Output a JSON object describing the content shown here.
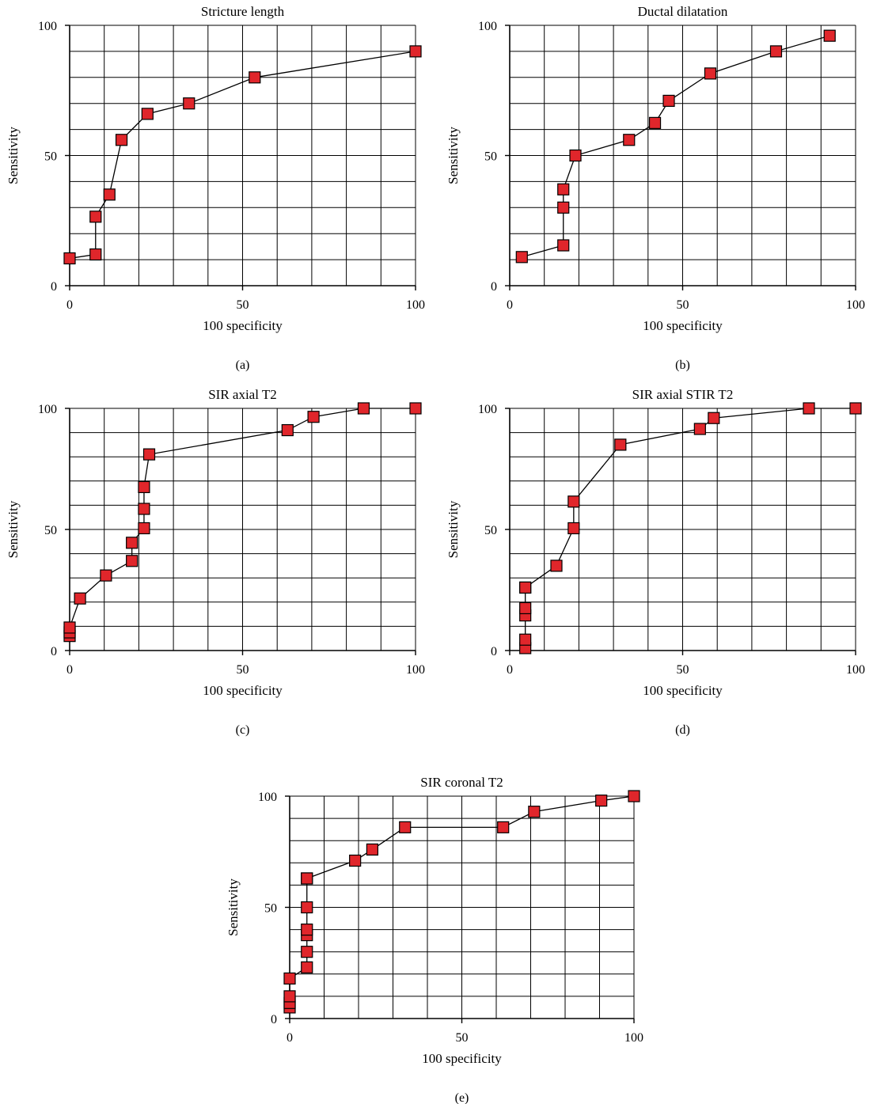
{
  "chart_data": [
    {
      "type": "scatter",
      "panel_label": "(a)",
      "title": "Stricture length",
      "xlabel": "100 specificity",
      "ylabel": "Sensitivity",
      "xlim": [
        0,
        100
      ],
      "ylim": [
        0,
        100
      ],
      "x_ticks": [
        "0",
        "50",
        "100"
      ],
      "y_ticks": [
        "0",
        "50",
        "100"
      ],
      "grid": true,
      "marker_color": "#e0262b",
      "series": [
        {
          "x": [
            0,
            7.5,
            7.5,
            11.5,
            15,
            22.5,
            34.5,
            53.5,
            100
          ],
          "y": [
            10.5,
            12,
            26.5,
            35,
            56,
            66,
            70,
            80,
            90
          ]
        }
      ]
    },
    {
      "type": "scatter",
      "panel_label": "(b)",
      "title": "Ductal dilatation",
      "xlabel": "100 specificity",
      "ylabel": "Sensitivity",
      "xlim": [
        0,
        100
      ],
      "ylim": [
        0,
        100
      ],
      "x_ticks": [
        "0",
        "50",
        "100"
      ],
      "y_ticks": [
        "0",
        "50",
        "100"
      ],
      "grid": true,
      "marker_color": "#e0262b",
      "series": [
        {
          "x": [
            3.5,
            15.5,
            15.5,
            15.5,
            19,
            34.5,
            42,
            46,
            58,
            77,
            92.5
          ],
          "y": [
            11,
            15.5,
            30,
            37,
            50,
            56,
            62.5,
            71,
            81.5,
            90,
            96
          ]
        }
      ]
    },
    {
      "type": "scatter",
      "panel_label": "(c)",
      "title": "SIR axial T2",
      "xlabel": "100 specificity",
      "ylabel": "Sensitivity",
      "xlim": [
        0,
        100
      ],
      "ylim": [
        0,
        100
      ],
      "x_ticks": [
        "0",
        "50",
        "100"
      ],
      "y_ticks": [
        "0",
        "50",
        "100"
      ],
      "grid": true,
      "marker_color": "#e0262b",
      "series": [
        {
          "x": [
            0,
            0,
            0,
            3,
            10.5,
            18,
            18,
            21.5,
            21.5,
            21.5,
            23,
            63,
            70.5,
            85,
            100
          ],
          "y": [
            6,
            7.5,
            9.5,
            21.5,
            31,
            37,
            44.5,
            50.5,
            58.5,
            67.5,
            81,
            91,
            96.5,
            100,
            100
          ]
        }
      ]
    },
    {
      "type": "scatter",
      "panel_label": "(d)",
      "title": "SIR axial STIR T2",
      "xlabel": "100 specificity",
      "ylabel": "Sensitivity",
      "xlim": [
        0,
        100
      ],
      "ylim": [
        0,
        100
      ],
      "x_ticks": [
        "0",
        "50",
        "100"
      ],
      "y_ticks": [
        "0",
        "50",
        "100"
      ],
      "grid": true,
      "marker_color": "#e0262b",
      "series": [
        {
          "x": [
            4.5,
            4.5,
            4.5,
            4.5,
            4.5,
            4.5,
            13.5,
            18.5,
            18.5,
            32,
            55,
            59,
            86.5,
            100
          ],
          "y": [
            1,
            4.5,
            14.5,
            17.5,
            26,
            26,
            35,
            50.5,
            61.5,
            85,
            91.5,
            96,
            100,
            100
          ]
        }
      ]
    },
    {
      "type": "scatter",
      "panel_label": "(e)",
      "title": "SIR coronal T2",
      "xlabel": "100 specificity",
      "ylabel": "Sensitivity",
      "xlim": [
        0,
        100
      ],
      "ylim": [
        0,
        100
      ],
      "x_ticks": [
        "0",
        "50",
        "100"
      ],
      "y_ticks": [
        "0",
        "50",
        "100"
      ],
      "grid": true,
      "marker_color": "#e0262b",
      "series": [
        {
          "x": [
            0,
            0,
            0,
            0,
            5,
            5,
            5,
            5,
            5,
            5,
            5,
            19,
            24,
            33.5,
            62,
            71,
            90.5,
            100
          ],
          "y": [
            5,
            7,
            10,
            18,
            23,
            30,
            37.5,
            40,
            50,
            63,
            63,
            71,
            76,
            86,
            86,
            93,
            98,
            100
          ]
        }
      ]
    }
  ]
}
